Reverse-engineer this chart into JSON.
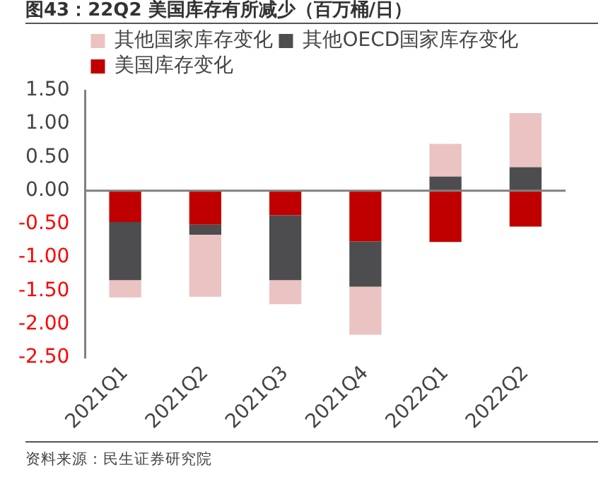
{
  "chart_data": {
    "type": "bar",
    "title": "图43：22Q2 美国库存有所减少（百万桶/日）",
    "categories": [
      "2021Q1",
      "2021Q2",
      "2021Q3",
      "2021Q4",
      "2022Q1",
      "2022Q2"
    ],
    "stacked": true,
    "series": [
      {
        "name": "美国库存变化",
        "color": "#c00000",
        "values": [
          -0.47,
          -0.51,
          -0.37,
          -0.76,
          -0.77,
          -0.54
        ]
      },
      {
        "name": "其他OECD国家库存变化",
        "color": "#4d4d4f",
        "values": [
          -0.87,
          -0.15,
          -0.97,
          -0.68,
          0.21,
          0.35
        ]
      },
      {
        "name": "其他国家库存变化",
        "color": "#ebc3c3",
        "values": [
          -0.26,
          -0.93,
          -0.36,
          -0.72,
          0.49,
          0.81
        ]
      }
    ],
    "ylim": [
      -2.5,
      1.5
    ],
    "yticks": [
      {
        "value": -2.5,
        "label": "-2.50"
      },
      {
        "value": -2,
        "label": "-2.00"
      },
      {
        "value": -1.5,
        "label": "-1.50"
      },
      {
        "value": -1,
        "label": "-1.00"
      },
      {
        "value": -0.5,
        "label": "-0.50"
      },
      {
        "value": 0,
        "label": "0.00"
      },
      {
        "value": 0.5,
        "label": "0.50"
      },
      {
        "value": 1,
        "label": "1.00"
      },
      {
        "value": 1.5,
        "label": "1.50"
      }
    ],
    "legend": "top",
    "annotations": [
      "资料来源：民生证券研究院"
    ]
  }
}
